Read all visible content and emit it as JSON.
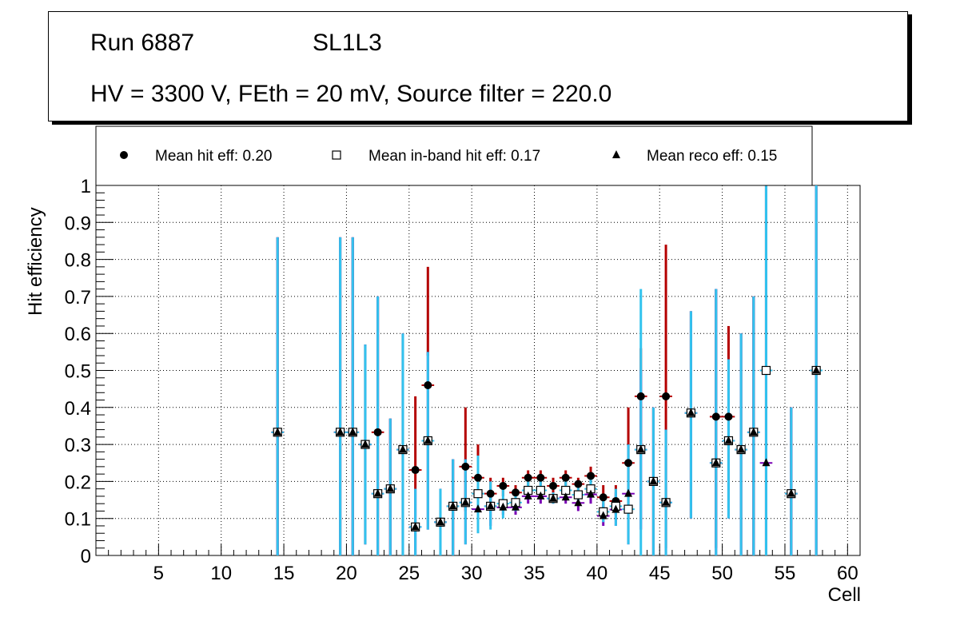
{
  "header": {
    "run": "Run 6887",
    "superlayer": "SL1L3",
    "conditions": "HV = 3300 V, FEth = 20 mV, Source filter = 220.0"
  },
  "colors": {
    "hit_err": "#b40000",
    "inband_err": "#32c3ee",
    "reco_err": "#7a00b4",
    "marker": "#000000",
    "grid": "#000000"
  },
  "chart_data": {
    "type": "scatter",
    "xlabel": "Cell",
    "ylabel": "Hit efficiency",
    "xlim": [
      0,
      61
    ],
    "ylim": [
      0,
      1
    ],
    "xticks": [
      5,
      10,
      15,
      20,
      25,
      30,
      35,
      40,
      45,
      50,
      55,
      60
    ],
    "yticks": [
      0,
      0.1,
      0.2,
      0.3,
      0.4,
      0.5,
      0.6,
      0.7,
      0.8,
      0.9,
      1
    ],
    "legend": [
      {
        "marker": "circle",
        "label": "Mean hit  eff: 0.20"
      },
      {
        "marker": "open-square",
        "label": "Mean in-band hit eff: 0.17"
      },
      {
        "marker": "triangle",
        "label": "Mean reco eff: 0.15"
      }
    ],
    "series": [
      {
        "name": "Hit efficiency",
        "marker": "circle",
        "points": [
          {
            "x": 14.5,
            "y": 0.333,
            "lo": 0.0,
            "hi": 0.86
          },
          {
            "x": 19.5,
            "y": 0.333,
            "lo": 0.0,
            "hi": 0.86
          },
          {
            "x": 20.5,
            "y": 0.333,
            "lo": 0.0,
            "hi": 0.86
          },
          {
            "x": 21.5,
            "y": 0.3,
            "lo": 0.03,
            "hi": 0.57
          },
          {
            "x": 22.5,
            "y": 0.333,
            "lo": 0.0,
            "hi": 0.7
          },
          {
            "x": 23.5,
            "y": 0.18,
            "lo": 0.0,
            "hi": 0.37
          },
          {
            "x": 24.5,
            "y": 0.286,
            "lo": 0.0,
            "hi": 0.6
          },
          {
            "x": 25.5,
            "y": 0.231,
            "lo": 0.18,
            "hi": 0.43
          },
          {
            "x": 26.5,
            "y": 0.46,
            "lo": 0.54,
            "hi": 0.78
          },
          {
            "x": 27.5,
            "y": 0.09,
            "lo": 0.0,
            "hi": 0.18
          },
          {
            "x": 28.5,
            "y": 0.133,
            "lo": 0.0,
            "hi": 0.26
          },
          {
            "x": 29.5,
            "y": 0.24,
            "lo": 0.12,
            "hi": 0.4
          },
          {
            "x": 30.5,
            "y": 0.21,
            "lo": 0.12,
            "hi": 0.3
          },
          {
            "x": 31.5,
            "y": 0.167,
            "lo": 0.12,
            "hi": 0.21
          },
          {
            "x": 32.5,
            "y": 0.188,
            "lo": 0.16,
            "hi": 0.21
          },
          {
            "x": 33.5,
            "y": 0.17,
            "lo": 0.15,
            "hi": 0.19
          },
          {
            "x": 34.5,
            "y": 0.21,
            "lo": 0.19,
            "hi": 0.23
          },
          {
            "x": 35.5,
            "y": 0.21,
            "lo": 0.19,
            "hi": 0.23
          },
          {
            "x": 36.5,
            "y": 0.188,
            "lo": 0.17,
            "hi": 0.21
          },
          {
            "x": 37.5,
            "y": 0.21,
            "lo": 0.19,
            "hi": 0.23
          },
          {
            "x": 38.5,
            "y": 0.193,
            "lo": 0.17,
            "hi": 0.21
          },
          {
            "x": 39.5,
            "y": 0.215,
            "lo": 0.19,
            "hi": 0.24
          },
          {
            "x": 40.5,
            "y": 0.157,
            "lo": 0.12,
            "hi": 0.19
          },
          {
            "x": 41.5,
            "y": 0.147,
            "lo": 0.11,
            "hi": 0.19
          },
          {
            "x": 42.5,
            "y": 0.25,
            "lo": 0.1,
            "hi": 0.4
          },
          {
            "x": 43.5,
            "y": 0.43,
            "lo": 0.3,
            "hi": 0.56
          },
          {
            "x": 44.5,
            "y": 0.2,
            "lo": 0.0,
            "hi": 0.4
          },
          {
            "x": 45.5,
            "y": 0.43,
            "lo": 0.02,
            "hi": 0.84
          },
          {
            "x": 47.5,
            "y": 0.385,
            "lo": 0.1,
            "hi": 0.66
          },
          {
            "x": 49.5,
            "y": 0.375,
            "lo": 0.02,
            "hi": 0.72
          },
          {
            "x": 50.5,
            "y": 0.375,
            "lo": 0.53,
            "hi": 0.62
          },
          {
            "x": 51.5,
            "y": 0.286,
            "lo": 0.0,
            "hi": 0.6
          },
          {
            "x": 52.5,
            "y": 0.333,
            "lo": 0.0,
            "hi": 0.7
          },
          {
            "x": 53.5,
            "y": 0.5,
            "lo": 0.0,
            "hi": 1.0
          },
          {
            "x": 55.5,
            "y": 0.167,
            "lo": 0.0,
            "hi": 0.4
          },
          {
            "x": 57.5,
            "y": 0.5,
            "lo": 0.0,
            "hi": 1.0
          }
        ]
      },
      {
        "name": "In-band hit efficiency",
        "marker": "open-square",
        "points": [
          {
            "x": 14.5,
            "y": 0.333,
            "lo": 0.0,
            "hi": 0.86
          },
          {
            "x": 19.5,
            "y": 0.333,
            "lo": 0.0,
            "hi": 0.86
          },
          {
            "x": 20.5,
            "y": 0.333,
            "lo": 0.0,
            "hi": 0.86
          },
          {
            "x": 21.5,
            "y": 0.3,
            "lo": 0.03,
            "hi": 0.57
          },
          {
            "x": 22.5,
            "y": 0.167,
            "lo": 0.0,
            "hi": 0.7
          },
          {
            "x": 23.5,
            "y": 0.18,
            "lo": 0.0,
            "hi": 0.37
          },
          {
            "x": 24.5,
            "y": 0.286,
            "lo": 0.0,
            "hi": 0.6
          },
          {
            "x": 25.5,
            "y": 0.077,
            "lo": 0.0,
            "hi": 0.18
          },
          {
            "x": 26.5,
            "y": 0.31,
            "lo": 0.07,
            "hi": 0.55
          },
          {
            "x": 27.5,
            "y": 0.09,
            "lo": 0.0,
            "hi": 0.18
          },
          {
            "x": 28.5,
            "y": 0.133,
            "lo": 0.0,
            "hi": 0.26
          },
          {
            "x": 29.5,
            "y": 0.143,
            "lo": 0.03,
            "hi": 0.26
          },
          {
            "x": 30.5,
            "y": 0.167,
            "lo": 0.06,
            "hi": 0.27
          },
          {
            "x": 31.5,
            "y": 0.133,
            "lo": 0.07,
            "hi": 0.2
          },
          {
            "x": 32.5,
            "y": 0.14,
            "lo": 0.1,
            "hi": 0.18
          },
          {
            "x": 33.5,
            "y": 0.143,
            "lo": 0.12,
            "hi": 0.17
          },
          {
            "x": 34.5,
            "y": 0.176,
            "lo": 0.16,
            "hi": 0.2
          },
          {
            "x": 35.5,
            "y": 0.176,
            "lo": 0.16,
            "hi": 0.2
          },
          {
            "x": 36.5,
            "y": 0.154,
            "lo": 0.14,
            "hi": 0.17
          },
          {
            "x": 37.5,
            "y": 0.176,
            "lo": 0.16,
            "hi": 0.2
          },
          {
            "x": 38.5,
            "y": 0.164,
            "lo": 0.14,
            "hi": 0.19
          },
          {
            "x": 39.5,
            "y": 0.18,
            "lo": 0.16,
            "hi": 0.21
          },
          {
            "x": 40.5,
            "y": 0.118,
            "lo": 0.09,
            "hi": 0.15
          },
          {
            "x": 41.5,
            "y": 0.133,
            "lo": 0.08,
            "hi": 0.18
          },
          {
            "x": 42.5,
            "y": 0.125,
            "lo": 0.03,
            "hi": 0.3
          },
          {
            "x": 43.5,
            "y": 0.286,
            "lo": 0.0,
            "hi": 0.72
          },
          {
            "x": 44.5,
            "y": 0.2,
            "lo": 0.0,
            "hi": 0.4
          },
          {
            "x": 45.5,
            "y": 0.143,
            "lo": 0.0,
            "hi": 0.34
          },
          {
            "x": 47.5,
            "y": 0.385,
            "lo": 0.1,
            "hi": 0.66
          },
          {
            "x": 49.5,
            "y": 0.25,
            "lo": 0.0,
            "hi": 0.72
          },
          {
            "x": 50.5,
            "y": 0.31,
            "lo": 0.1,
            "hi": 0.53
          },
          {
            "x": 51.5,
            "y": 0.286,
            "lo": 0.0,
            "hi": 0.6
          },
          {
            "x": 52.5,
            "y": 0.333,
            "lo": 0.0,
            "hi": 0.7
          },
          {
            "x": 53.5,
            "y": 0.5,
            "lo": 0.0,
            "hi": 1.0
          },
          {
            "x": 55.5,
            "y": 0.167,
            "lo": 0.0,
            "hi": 0.4
          },
          {
            "x": 57.5,
            "y": 0.5,
            "lo": 0.0,
            "hi": 1.0
          }
        ]
      },
      {
        "name": "Reco efficiency",
        "marker": "triangle",
        "points": [
          {
            "x": 14.5,
            "y": 0.333,
            "lo": 0.0,
            "hi": 0.86
          },
          {
            "x": 19.5,
            "y": 0.333,
            "lo": 0.0,
            "hi": 0.86
          },
          {
            "x": 20.5,
            "y": 0.333,
            "lo": 0.0,
            "hi": 0.86
          },
          {
            "x": 21.5,
            "y": 0.3,
            "lo": 0.03,
            "hi": 0.57
          },
          {
            "x": 22.5,
            "y": 0.167,
            "lo": 0.0,
            "hi": 0.7
          },
          {
            "x": 23.5,
            "y": 0.18,
            "lo": 0.0,
            "hi": 0.37
          },
          {
            "x": 24.5,
            "y": 0.286,
            "lo": 0.0,
            "hi": 0.6
          },
          {
            "x": 25.5,
            "y": 0.077,
            "lo": 0.0,
            "hi": 0.18
          },
          {
            "x": 26.5,
            "y": 0.31,
            "lo": 0.07,
            "hi": 0.55
          },
          {
            "x": 27.5,
            "y": 0.09,
            "lo": 0.0,
            "hi": 0.18
          },
          {
            "x": 28.5,
            "y": 0.133,
            "lo": 0.0,
            "hi": 0.26
          },
          {
            "x": 29.5,
            "y": 0.143,
            "lo": 0.03,
            "hi": 0.26
          },
          {
            "x": 30.5,
            "y": 0.125,
            "lo": 0.08,
            "hi": 0.23
          },
          {
            "x": 31.5,
            "y": 0.133,
            "lo": 0.08,
            "hi": 0.18
          },
          {
            "x": 32.5,
            "y": 0.13,
            "lo": 0.11,
            "hi": 0.15
          },
          {
            "x": 33.5,
            "y": 0.13,
            "lo": 0.11,
            "hi": 0.15
          },
          {
            "x": 34.5,
            "y": 0.16,
            "lo": 0.14,
            "hi": 0.18
          },
          {
            "x": 35.5,
            "y": 0.16,
            "lo": 0.14,
            "hi": 0.18
          },
          {
            "x": 36.5,
            "y": 0.154,
            "lo": 0.14,
            "hi": 0.17
          },
          {
            "x": 37.5,
            "y": 0.157,
            "lo": 0.14,
            "hi": 0.17
          },
          {
            "x": 38.5,
            "y": 0.142,
            "lo": 0.12,
            "hi": 0.16
          },
          {
            "x": 39.5,
            "y": 0.165,
            "lo": 0.14,
            "hi": 0.19
          },
          {
            "x": 40.5,
            "y": 0.107,
            "lo": 0.08,
            "hi": 0.14
          },
          {
            "x": 41.5,
            "y": 0.124,
            "lo": 0.08,
            "hi": 0.17
          },
          {
            "x": 42.5,
            "y": 0.167,
            "lo": 0.03,
            "hi": 0.3
          },
          {
            "x": 43.5,
            "y": 0.286,
            "lo": 0.07,
            "hi": 0.5
          },
          {
            "x": 44.5,
            "y": 0.2,
            "lo": 0.0,
            "hi": 0.4
          },
          {
            "x": 45.5,
            "y": 0.143,
            "lo": 0.0,
            "hi": 0.34
          },
          {
            "x": 47.5,
            "y": 0.385,
            "lo": 0.1,
            "hi": 0.66
          },
          {
            "x": 49.5,
            "y": 0.25,
            "lo": 0.0,
            "hi": 0.72
          },
          {
            "x": 50.5,
            "y": 0.31,
            "lo": 0.1,
            "hi": 0.53
          },
          {
            "x": 51.5,
            "y": 0.286,
            "lo": 0.0,
            "hi": 0.6
          },
          {
            "x": 52.5,
            "y": 0.333,
            "lo": 0.0,
            "hi": 0.7
          },
          {
            "x": 53.5,
            "y": 0.25,
            "lo": 0.0,
            "hi": 1.0
          },
          {
            "x": 55.5,
            "y": 0.167,
            "lo": 0.0,
            "hi": 0.4
          },
          {
            "x": 57.5,
            "y": 0.5,
            "lo": 0.0,
            "hi": 1.0
          }
        ]
      }
    ]
  }
}
